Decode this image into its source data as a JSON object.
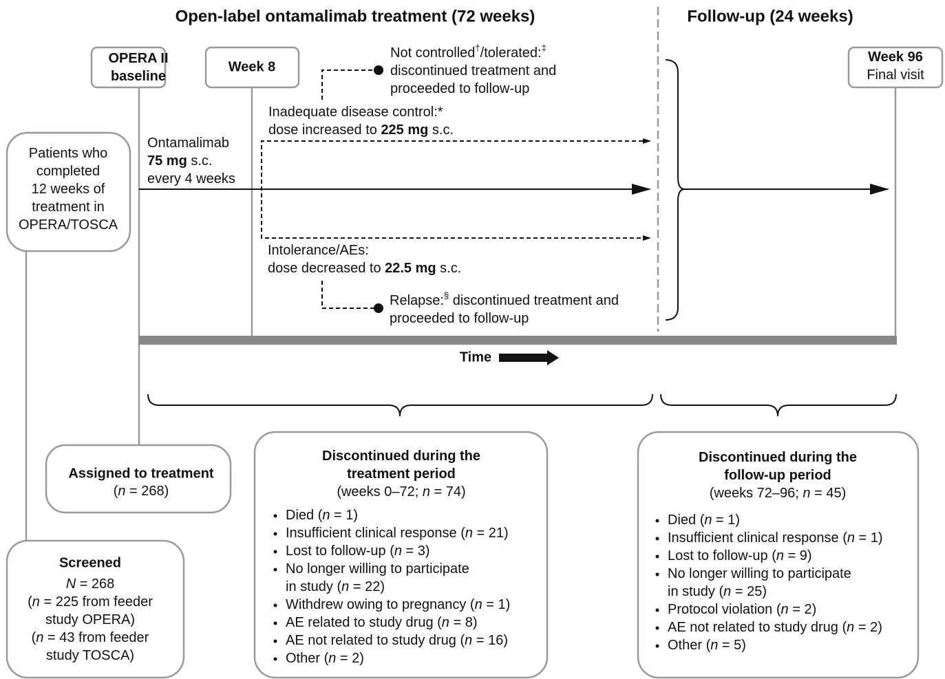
{
  "header": {
    "treatment": "Open-label ontamalimab treatment (72 weeks)",
    "follow_up": "Follow-up (24 weeks)"
  },
  "timepoints": {
    "baseline": [
      "OPERA II",
      "baseline"
    ],
    "week_8": "Week 8",
    "week_96": [
      "Week 96",
      "Final visit"
    ]
  },
  "patients": [
    "Patients who",
    "completed",
    "12 weeks of",
    "treatment in",
    "OPERA/TOSCA"
  ],
  "start_dose": [
    [
      "Ontamalimab"
    ],
    [
      {
        "bold": "75 mg"
      },
      " s.c."
    ],
    [
      "every 4 weeks"
    ]
  ],
  "not_controlled": [
    [
      "Not controlled",
      {
        "sup": "†"
      },
      "/tolerated:",
      {
        "sup": "‡"
      }
    ],
    [
      "discontinued treatment and"
    ],
    [
      "proceeded to follow-up"
    ]
  ],
  "dose_increase": [
    [
      "Inadequate disease control:*"
    ],
    [
      "dose increased to ",
      {
        "bold": "225 mg"
      },
      " s.c."
    ]
  ],
  "dose_decrease": [
    [
      "Intolerance/AEs:"
    ],
    [
      "dose decreased to ",
      {
        "bold": "22.5 mg"
      },
      " s.c."
    ]
  ],
  "relapse": [
    [
      "Relapse:",
      {
        "sup": "§"
      },
      " discontinued treatment and"
    ],
    [
      "proceeded to follow-up"
    ]
  ],
  "time_label": "Time",
  "assigned": {
    "title": "Assigned to treatment",
    "lines": [
      [
        "(",
        {
          "italic": "n"
        },
        " = 268)"
      ]
    ]
  },
  "screened": {
    "title": "Screened",
    "lines": [
      [
        {
          "italic": "N"
        },
        " = 268"
      ],
      [
        "(",
        {
          "italic": "n"
        },
        " = 225 from feeder"
      ],
      [
        "study OPERA)"
      ],
      [
        "(",
        {
          "italic": "n"
        },
        " = 43 from feeder"
      ],
      [
        "study TOSCA)"
      ]
    ]
  },
  "treatment_discontinued": {
    "title": [
      "Discontinued during the",
      "treatment period"
    ],
    "subtitle": [
      "(weeks 0–72; ",
      {
        "italic": "n"
      },
      " = 74)"
    ],
    "items": [
      [
        [
          "Died (",
          {
            "italic": "n"
          },
          " = 1)"
        ]
      ],
      [
        [
          "Insufficient clinical response (",
          {
            "italic": "n"
          },
          " = 21)"
        ]
      ],
      [
        [
          "Lost to follow-up (",
          {
            "italic": "n"
          },
          " = 3)"
        ]
      ],
      [
        [
          "No longer willing to participate"
        ],
        [
          "in study (",
          {
            "italic": "n"
          },
          " = 22)"
        ]
      ],
      [
        [
          "Withdrew owing to pregnancy (",
          {
            "italic": "n"
          },
          " = 1)"
        ]
      ],
      [
        [
          "AE related to study drug (",
          {
            "italic": "n"
          },
          " = 8)"
        ]
      ],
      [
        [
          "AE not related to study drug (",
          {
            "italic": "n"
          },
          " = 16)"
        ]
      ],
      [
        [
          "Other (",
          {
            "italic": "n"
          },
          " = 2)"
        ]
      ]
    ]
  },
  "followup_discontinued": {
    "title": [
      "Discontinued during the",
      "follow-up period"
    ],
    "subtitle": [
      "(weeks 72–96; ",
      {
        "italic": "n"
      },
      " = 45)"
    ],
    "items": [
      [
        [
          "Died (",
          {
            "italic": "n"
          },
          " = 1)"
        ]
      ],
      [
        [
          "Insufficient clinical response (",
          {
            "italic": "n"
          },
          " = 1)"
        ]
      ],
      [
        [
          "Lost to follow-up (",
          {
            "italic": "n"
          },
          " = 9)"
        ]
      ],
      [
        [
          "No longer willing to participate"
        ],
        [
          "in study (",
          {
            "italic": "n"
          },
          " = 25)"
        ]
      ],
      [
        [
          "Protocol violation (",
          {
            "italic": "n"
          },
          " = 2)"
        ]
      ],
      [
        [
          "AE not related to study drug (",
          {
            "italic": "n"
          },
          " = 2)"
        ]
      ],
      [
        [
          "Other (",
          {
            "italic": "n"
          },
          " = 5)"
        ]
      ]
    ]
  }
}
